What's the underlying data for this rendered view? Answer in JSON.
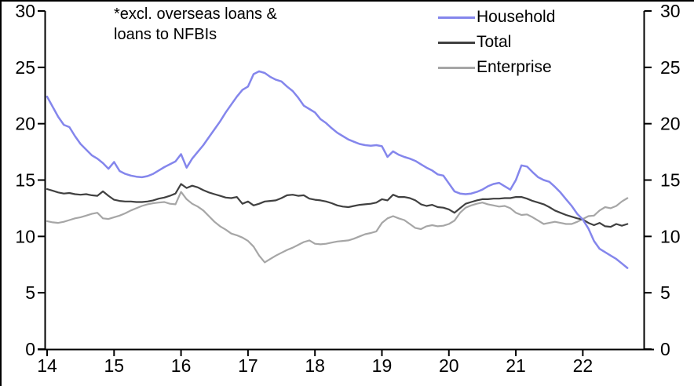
{
  "figure": {
    "annotation": {
      "line1": "*excl. overseas loans &",
      "line2": "loans to NFBIs"
    },
    "legend": [
      {
        "label": "Household",
        "color": "#8486ec"
      },
      {
        "label": "Total",
        "color": "#404040"
      },
      {
        "label": "Enterprise",
        "color": "#a6a6a6"
      }
    ],
    "y_axis": {
      "min": 0,
      "max": 30,
      "step": 5,
      "ticks": [
        0,
        5,
        10,
        15,
        20,
        25,
        30
      ],
      "mirrored_right": true
    },
    "x_axis": {
      "tick_labels": [
        "14",
        "15",
        "16",
        "17",
        "18",
        "19",
        "20",
        "21",
        "22"
      ]
    },
    "axis_color": "#000000",
    "background_color": "#ffffff"
  },
  "chart_data": {
    "type": "line",
    "frequency": "monthly",
    "x_start": "2014-01",
    "x_end": "2022-09",
    "xlabel": "",
    "ylabel": "",
    "ylim": [
      0,
      30
    ],
    "grid": false,
    "legend_position": "top-right",
    "series": [
      {
        "name": "Household",
        "color": "#8486ec",
        "width": 2.5,
        "values": [
          22.4,
          21.5,
          20.6,
          19.9,
          19.7,
          18.9,
          18.2,
          17.7,
          17.2,
          16.9,
          16.5,
          16.0,
          16.6,
          15.8,
          15.55,
          15.4,
          15.3,
          15.25,
          15.35,
          15.55,
          15.85,
          16.15,
          16.4,
          16.65,
          17.3,
          16.1,
          16.9,
          17.5,
          18.1,
          18.8,
          19.5,
          20.2,
          21.0,
          21.7,
          22.4,
          23.0,
          23.3,
          24.4,
          24.65,
          24.5,
          24.15,
          23.9,
          23.75,
          23.3,
          22.9,
          22.3,
          21.6,
          21.3,
          21.0,
          20.4,
          20.05,
          19.6,
          19.2,
          18.9,
          18.6,
          18.4,
          18.2,
          18.1,
          18.05,
          18.1,
          18.0,
          17.05,
          17.55,
          17.25,
          17.05,
          16.9,
          16.7,
          16.4,
          16.1,
          15.85,
          15.5,
          15.4,
          14.7,
          14.0,
          13.8,
          13.75,
          13.8,
          13.95,
          14.15,
          14.45,
          14.65,
          14.75,
          14.45,
          14.15,
          15.0,
          16.3,
          16.2,
          15.7,
          15.25,
          15.0,
          14.85,
          14.4,
          13.9,
          13.3,
          12.7,
          12.0,
          11.5,
          10.7,
          9.6,
          8.9,
          8.6,
          8.3,
          8.0,
          7.6,
          7.2
        ]
      },
      {
        "name": "Total",
        "color": "#404040",
        "width": 2.2,
        "values": [
          14.2,
          14.05,
          13.9,
          13.8,
          13.85,
          13.75,
          13.7,
          13.75,
          13.65,
          13.6,
          14.0,
          13.6,
          13.25,
          13.15,
          13.1,
          13.1,
          13.05,
          13.05,
          13.1,
          13.2,
          13.35,
          13.45,
          13.6,
          13.8,
          14.65,
          14.3,
          14.5,
          14.35,
          14.1,
          13.9,
          13.75,
          13.6,
          13.45,
          13.4,
          13.5,
          12.9,
          13.1,
          12.75,
          12.9,
          13.1,
          13.15,
          13.2,
          13.4,
          13.65,
          13.7,
          13.6,
          13.65,
          13.35,
          13.25,
          13.2,
          13.1,
          12.95,
          12.75,
          12.65,
          12.6,
          12.7,
          12.8,
          12.85,
          12.9,
          13.0,
          13.3,
          13.2,
          13.7,
          13.5,
          13.5,
          13.4,
          13.2,
          12.85,
          12.7,
          12.8,
          12.6,
          12.55,
          12.4,
          12.1,
          12.5,
          12.9,
          13.05,
          13.2,
          13.3,
          13.3,
          13.35,
          13.35,
          13.4,
          13.4,
          13.5,
          13.5,
          13.35,
          13.15,
          13.0,
          12.85,
          12.6,
          12.3,
          12.1,
          11.9,
          11.75,
          11.6,
          11.5,
          11.2,
          11.0,
          11.2,
          10.9,
          10.85,
          11.1,
          10.95,
          11.1
        ]
      },
      {
        "name": "Enterprise",
        "color": "#a6a6a6",
        "width": 2.2,
        "values": [
          11.35,
          11.25,
          11.2,
          11.3,
          11.45,
          11.6,
          11.7,
          11.85,
          12.0,
          12.1,
          11.6,
          11.55,
          11.7,
          11.85,
          12.05,
          12.3,
          12.5,
          12.7,
          12.85,
          12.95,
          13.0,
          13.05,
          12.9,
          12.85,
          13.95,
          13.3,
          12.9,
          12.65,
          12.3,
          11.8,
          11.3,
          10.9,
          10.6,
          10.25,
          10.1,
          9.9,
          9.6,
          9.1,
          8.3,
          7.7,
          8.0,
          8.3,
          8.55,
          8.8,
          9.0,
          9.25,
          9.5,
          9.65,
          9.35,
          9.3,
          9.35,
          9.45,
          9.55,
          9.6,
          9.65,
          9.8,
          10.0,
          10.2,
          10.3,
          10.45,
          11.2,
          11.6,
          11.8,
          11.6,
          11.45,
          11.1,
          10.75,
          10.65,
          10.9,
          11.0,
          10.9,
          10.95,
          11.1,
          11.4,
          12.1,
          12.55,
          12.75,
          12.9,
          13.0,
          12.85,
          12.75,
          12.65,
          12.7,
          12.5,
          12.1,
          11.9,
          11.95,
          11.7,
          11.4,
          11.1,
          11.2,
          11.3,
          11.2,
          11.1,
          11.1,
          11.3,
          11.55,
          11.8,
          11.85,
          12.3,
          12.6,
          12.5,
          12.7,
          13.1,
          13.4
        ]
      }
    ]
  }
}
